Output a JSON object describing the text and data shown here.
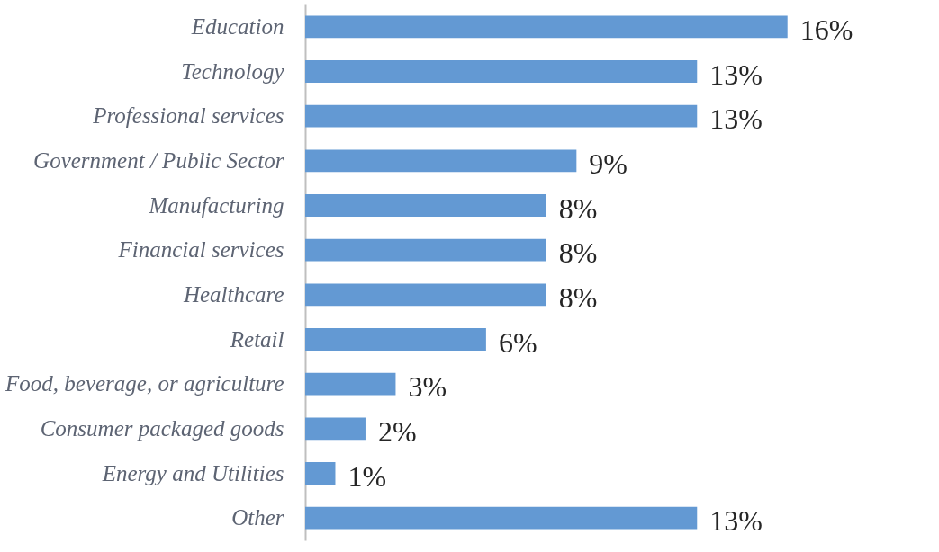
{
  "chart_data": {
    "type": "bar",
    "orientation": "horizontal",
    "categories": [
      "Education",
      "Technology",
      "Professional services",
      "Government / Public Sector",
      "Manufacturing",
      "Financial services",
      "Healthcare",
      "Retail",
      "Food, beverage, or agriculture",
      "Consumer packaged goods",
      "Energy and Utilities",
      "Other"
    ],
    "values": [
      16,
      13,
      13,
      9,
      8,
      8,
      8,
      6,
      3,
      2,
      1,
      13
    ],
    "value_labels": [
      "16%",
      "13%",
      "13%",
      "9%",
      "8%",
      "8%",
      "8%",
      "6%",
      "3%",
      "2%",
      "1%",
      "13%"
    ],
    "color": "#6399d3",
    "tick_labels": "y"
  }
}
